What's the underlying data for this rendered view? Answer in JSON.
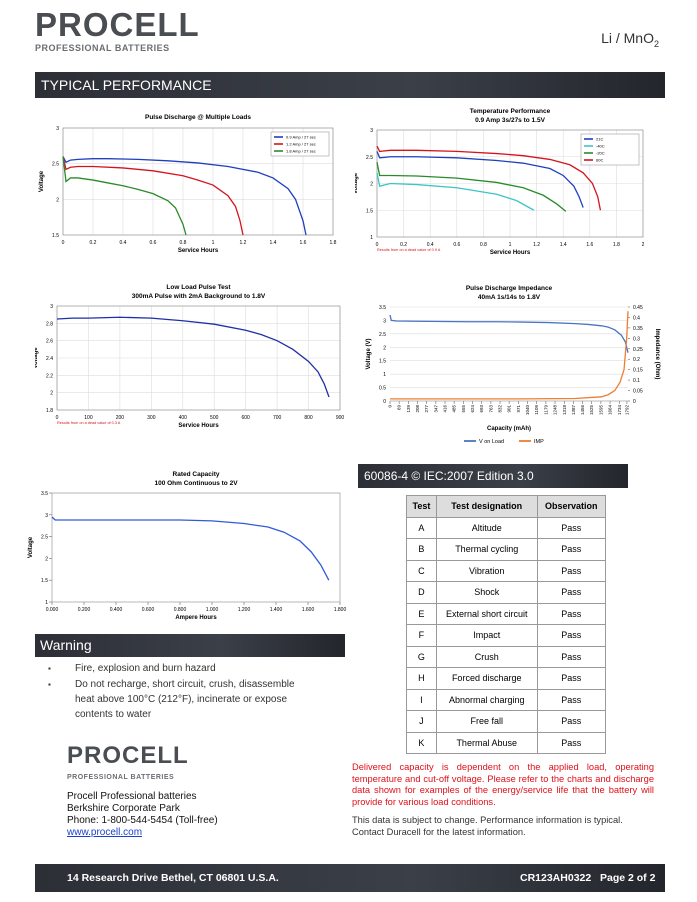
{
  "header": {
    "logo": "PROCELL",
    "tagline": "PROFESSIONAL BATTERIES",
    "chemistry": {
      "text": "Li / MnO",
      "subscript": "2"
    }
  },
  "section_title": "TYPICAL  PERFORMANCE",
  "chart_data": [
    {
      "type": "line",
      "title": "Pulse Discharge @ Multiple Loads",
      "xlabel": "Service Hours",
      "ylabel": "Voltage",
      "xlim": [
        0,
        1.8
      ],
      "xticks": [
        0,
        0.2,
        0.4,
        0.6,
        0.8,
        1,
        1.2,
        1.4,
        1.6,
        1.8
      ],
      "ylim": [
        1.5,
        3
      ],
      "yticks": [
        1.5,
        2,
        2.5,
        3
      ],
      "grid": true,
      "legend": "upper right",
      "series": [
        {
          "name": "0.9 Amp / 27 sec",
          "color": "#1f3fbf",
          "x": [
            0,
            0.02,
            0.05,
            0.1,
            0.2,
            0.3,
            0.5,
            0.7,
            0.9,
            1.1,
            1.3,
            1.4,
            1.5,
            1.55,
            1.6,
            1.62
          ],
          "values": [
            2.6,
            2.52,
            2.55,
            2.56,
            2.57,
            2.57,
            2.56,
            2.54,
            2.51,
            2.46,
            2.38,
            2.3,
            2.15,
            2,
            1.7,
            1.5
          ]
        },
        {
          "name": "1.2 Amp / 27 sec",
          "color": "#d4141c",
          "x": [
            0,
            0.02,
            0.05,
            0.1,
            0.2,
            0.4,
            0.6,
            0.8,
            0.9,
            1,
            1.1,
            1.15,
            1.18,
            1.2
          ],
          "values": [
            2.6,
            2.42,
            2.45,
            2.46,
            2.46,
            2.44,
            2.4,
            2.33,
            2.27,
            2.2,
            2.05,
            1.9,
            1.7,
            1.5
          ]
        },
        {
          "name": "1.8 Amp / 27 sec",
          "color": "#2a8a2a",
          "x": [
            0,
            0.02,
            0.05,
            0.1,
            0.2,
            0.3,
            0.4,
            0.5,
            0.6,
            0.7,
            0.75,
            0.8,
            0.82
          ],
          "values": [
            2.6,
            2.25,
            2.3,
            2.3,
            2.27,
            2.23,
            2.19,
            2.14,
            2.08,
            1.98,
            1.88,
            1.65,
            1.5
          ]
        }
      ]
    },
    {
      "type": "line",
      "title": "Temperature Performance",
      "subtitle": "0.9 Amp 3s/27s to 1.5V",
      "xlabel": "Service Hours",
      "ylabel": "Voltage",
      "note": "Results from on a dead value of 0.9 A",
      "xlim": [
        0,
        2
      ],
      "xticks": [
        0,
        0.2,
        0.4,
        0.6,
        0.8,
        1,
        1.2,
        1.4,
        1.6,
        1.8,
        2
      ],
      "ylim": [
        1,
        3
      ],
      "yticks": [
        1,
        1.5,
        2,
        2.5,
        3
      ],
      "grid": true,
      "legend": "upper right",
      "series": [
        {
          "name": "21C",
          "color": "#1f3fbf",
          "x": [
            0,
            0.02,
            0.1,
            0.3,
            0.6,
            0.9,
            1.1,
            1.3,
            1.4,
            1.48,
            1.52,
            1.55
          ],
          "values": [
            2.6,
            2.48,
            2.5,
            2.5,
            2.48,
            2.43,
            2.38,
            2.28,
            2.15,
            1.95,
            1.75,
            1.55
          ]
        },
        {
          "name": "-40C",
          "color": "#3fc4c4",
          "x": [
            0,
            0.02,
            0.1,
            0.3,
            0.6,
            0.9,
            1.05,
            1.18
          ],
          "values": [
            2.2,
            1.95,
            2,
            1.98,
            1.92,
            1.8,
            1.68,
            1.5
          ]
        },
        {
          "name": "-20C",
          "color": "#2a8a2a",
          "x": [
            0,
            0.02,
            0.1,
            0.3,
            0.6,
            0.9,
            1.1,
            1.25,
            1.35,
            1.42
          ],
          "values": [
            2.4,
            2.15,
            2.15,
            2.14,
            2.1,
            2.02,
            1.92,
            1.78,
            1.62,
            1.48
          ]
        },
        {
          "name": "60C",
          "color": "#d4141c",
          "x": [
            0,
            0.02,
            0.1,
            0.3,
            0.6,
            0.9,
            1.1,
            1.3,
            1.45,
            1.55,
            1.62,
            1.66,
            1.68
          ],
          "values": [
            2.7,
            2.6,
            2.62,
            2.62,
            2.6,
            2.56,
            2.52,
            2.45,
            2.35,
            2.2,
            2,
            1.75,
            1.5
          ]
        }
      ]
    },
    {
      "type": "line",
      "title": "Low Load Pulse Test",
      "subtitle": "300mA Pulse with 2mA Background to 1.8V",
      "xlabel": "Service Hours",
      "ylabel": "Voltage",
      "note": "Results from on a dead value of 0.3 A",
      "xlim": [
        0,
        900
      ],
      "xticks": [
        0,
        100,
        200,
        300,
        400,
        500,
        600,
        700,
        800,
        900
      ],
      "ylim": [
        1.8,
        3
      ],
      "yticks": [
        1.8,
        2,
        2.2,
        2.4,
        2.6,
        2.8,
        3
      ],
      "grid": true,
      "series": [
        {
          "name": "Voltage",
          "color": "#1f2fa8",
          "x": [
            0,
            50,
            100,
            200,
            300,
            400,
            500,
            600,
            650,
            700,
            750,
            800,
            830,
            850,
            865
          ],
          "values": [
            2.85,
            2.86,
            2.86,
            2.87,
            2.86,
            2.83,
            2.79,
            2.72,
            2.67,
            2.6,
            2.5,
            2.36,
            2.24,
            2.1,
            1.95
          ]
        }
      ]
    },
    {
      "type": "line",
      "title": "Pulse Discharge Impedance",
      "subtitle": "40mA 1s/14s to 1.8V",
      "xlabel": "Capacity (mAh)",
      "ylabel": "Voltage (V)",
      "y2label": "Impedance (Ohm)",
      "xlim": [
        0,
        1800
      ],
      "xticks": [
        0,
        69,
        139,
        208,
        277,
        347,
        416,
        485,
        555,
        624,
        693,
        763,
        832,
        901,
        971,
        1040,
        1109,
        1179,
        1248,
        1318,
        1387,
        1456,
        1525,
        1595,
        1664,
        1734,
        1792
      ],
      "xtick_rotation": 90,
      "ylim": [
        0,
        3.5
      ],
      "yticks": [
        0,
        0.5,
        1,
        1.5,
        2,
        2.5,
        3,
        3.5
      ],
      "y2lim": [
        0,
        0.45
      ],
      "y2ticks": [
        0,
        0.05,
        0.1,
        0.15,
        0.2,
        0.25,
        0.3,
        0.35,
        0.4,
        0.45
      ],
      "grid": true,
      "legend": "bottom",
      "series": [
        {
          "name": "V on Load",
          "color": "#4a74c4",
          "x": [
            0,
            10,
            50,
            200,
            400,
            600,
            800,
            1000,
            1200,
            1400,
            1500,
            1600,
            1650,
            1700,
            1750,
            1780,
            1800
          ],
          "values": [
            3.2,
            3,
            2.98,
            2.97,
            2.96,
            2.95,
            2.95,
            2.94,
            2.92,
            2.88,
            2.85,
            2.8,
            2.75,
            2.65,
            2.45,
            2.2,
            1.8
          ]
        },
        {
          "name": "IMP",
          "color": "#ed7d31",
          "axis": "y2",
          "x": [
            0,
            200,
            600,
            1000,
            1400,
            1600,
            1650,
            1700,
            1740,
            1770,
            1790,
            1800
          ],
          "values": [
            0.01,
            0.01,
            0.01,
            0.01,
            0.012,
            0.02,
            0.03,
            0.05,
            0.09,
            0.15,
            0.3,
            0.43
          ]
        }
      ]
    },
    {
      "type": "line",
      "title": "Rated Capacity",
      "subtitle": "100 Ohm Continuous to 2V",
      "xlabel": "Ampere Hours",
      "ylabel": "Voltage",
      "xlim": [
        0,
        1.8
      ],
      "xticks": [
        {
          "value": 0,
          "label": "0.000"
        },
        {
          "value": 0.2,
          "label": "0.200"
        },
        {
          "value": 0.4,
          "label": "0.400"
        },
        {
          "value": 0.6,
          "label": "0.600"
        },
        {
          "value": 0.8,
          "label": "0.800"
        },
        {
          "value": 1,
          "label": "1.000"
        },
        {
          "value": 1.2,
          "label": "1.200"
        },
        {
          "value": 1.4,
          "label": "1.400"
        },
        {
          "value": 1.6,
          "label": "1.600"
        },
        {
          "value": 1.8,
          "label": "1.800"
        }
      ],
      "ylim": [
        1,
        3.5
      ],
      "yticks": [
        1,
        1.5,
        2,
        2.5,
        3,
        3.5
      ],
      "grid": false,
      "series": [
        {
          "name": "Voltage",
          "color": "#2f5bd8",
          "x": [
            0,
            0.02,
            0.2,
            0.5,
            0.8,
            1,
            1.2,
            1.35,
            1.45,
            1.55,
            1.62,
            1.68,
            1.73
          ],
          "values": [
            2.95,
            2.88,
            2.88,
            2.88,
            2.88,
            2.86,
            2.8,
            2.72,
            2.6,
            2.4,
            2.15,
            1.85,
            1.5
          ]
        }
      ]
    }
  ],
  "table": {
    "title": "60086-4 © IEC:2007 Edition 3.0",
    "headers": [
      "Test",
      "Test designation",
      "Observation"
    ],
    "rows": [
      [
        "A",
        "Altitude",
        "Pass"
      ],
      [
        "B",
        "Thermal cycling",
        "Pass"
      ],
      [
        "C",
        "Vibration",
        "Pass"
      ],
      [
        "D",
        "Shock",
        "Pass"
      ],
      [
        "E",
        "External short circuit",
        "Pass"
      ],
      [
        "F",
        "Impact",
        "Pass"
      ],
      [
        "G",
        "Crush",
        "Pass"
      ],
      [
        "H",
        "Forced discharge",
        "Pass"
      ],
      [
        "I",
        "Abnormal charging",
        "Pass"
      ],
      [
        "J",
        "Free fall",
        "Pass"
      ],
      [
        "K",
        "Thermal Abuse",
        "Pass"
      ]
    ]
  },
  "warning": {
    "title": "Warning",
    "items": [
      "Fire, explosion and burn hazard",
      "Do not recharge, short circuit, crush, disassemble heat above 100°C (212°F), incinerate or expose contents to water"
    ]
  },
  "contact": {
    "logo": "PROCELL",
    "tagline": "PROFESSIONAL BATTERIES",
    "lines": [
      "Procell Professional batteries",
      "Berkshire Corporate Park",
      "Phone: 1-800-544-5454 (Toll-free)"
    ],
    "link": "www.procell.com"
  },
  "notes": {
    "disclaimer": "Delivered capacity is dependent on the applied load, operating temperature and cut-off voltage. Please refer to the charts and discharge data shown for examples of the energy/service life that the battery will provide for various load conditions.",
    "info": "This data is subject to change. Performance information is typical. Contact Duracell for the latest information."
  },
  "footer": {
    "address": "14 Research Drive Bethel, CT 06801 U.S.A.",
    "code": "CR123AH0322",
    "page": "Page 2 of 2"
  }
}
